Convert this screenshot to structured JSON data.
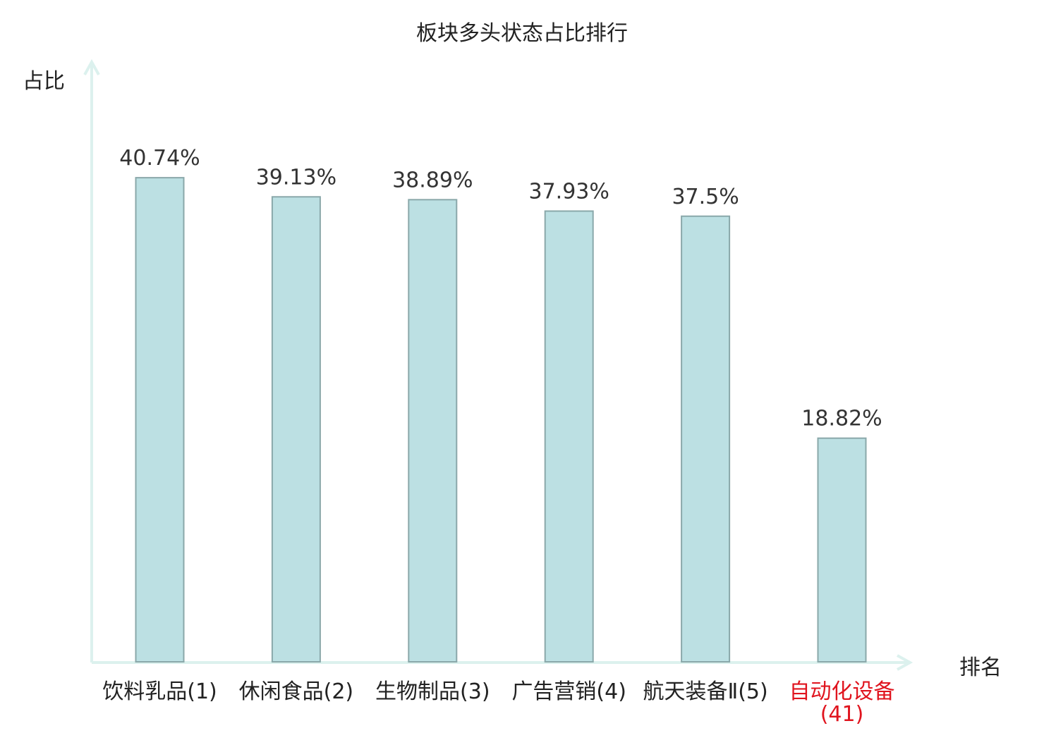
{
  "chart_data": {
    "type": "bar",
    "title": "板块多头状态占比排行",
    "ylabel": "占比",
    "xlabel": "排名",
    "categories": [
      "饮料乳品(1)",
      "休闲食品(2)",
      "生物制品(3)",
      "广告营销(4)",
      "航天装备Ⅱ(5)",
      "自动化设备(41)"
    ],
    "values": [
      40.74,
      39.13,
      38.89,
      37.93,
      37.5,
      18.82
    ],
    "data_labels": [
      "40.74%",
      "39.13%",
      "38.89%",
      "37.93%",
      "37.5%",
      "18.82%"
    ],
    "ylim": [
      0,
      50
    ],
    "grid": false,
    "highlight_index": 5,
    "colors": {
      "bar_fill": "#bce0e3",
      "bar_stroke": "#8aa8aa",
      "axis": "#dcf1ee",
      "text": "#222222",
      "value_text": "#333333",
      "highlight": "#e0141e"
    }
  }
}
